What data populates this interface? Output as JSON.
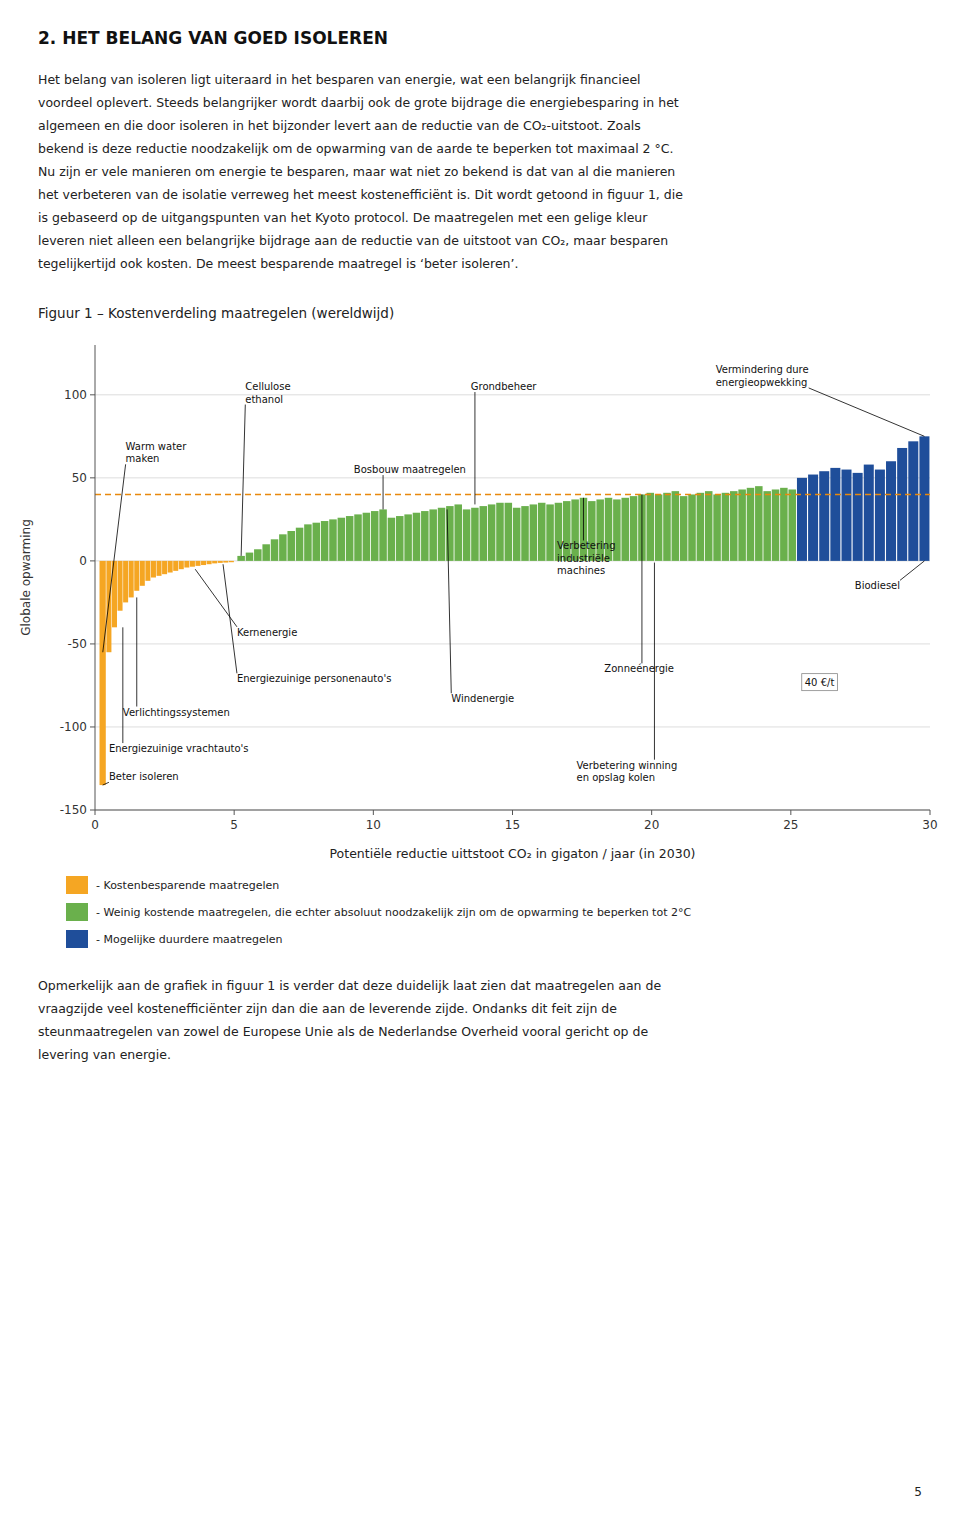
{
  "heading": "2.  HET BELANG VAN GOED ISOLEREN",
  "paragraph1": [
    "Het belang van isoleren ligt uiteraard in het besparen van energie, wat een belangrijk financieel",
    "voordeel oplevert. Steeds belangrijker wordt daarbij ook de grote bijdrage die energiebesparing in het",
    "algemeen en die door isoleren in het bijzonder levert aan de reductie van de CO₂-uitstoot. Zoals",
    "bekend is deze reductie noodzakelijk om de opwarming van de aarde te beperken tot maximaal 2 °C.",
    "Nu zijn er vele manieren om energie te besparen, maar wat niet zo bekend is dat van al die manieren",
    "het verbeteren van de isolatie verreweg het meest kostenefficiënt is. Dit wordt getoond in figuur 1, die",
    "is gebaseerd op de uitgangspunten van het Kyoto protocol. De maatregelen met een gelige kleur",
    "leveren niet alleen een belangrijke bijdrage aan de reductie van de uitstoot van CO₂, maar besparen",
    "tegelijkertijd ook kosten. De meest besparende maatregel is ‘beter isoleren’."
  ],
  "paragraph2": [
    "Opmerkelijk aan de grafiek in figuur 1 is verder dat deze duidelijk laat zien dat maatregelen aan de",
    "vraagzijde veel kostenefficiënter zijn dan die aan de leverende zijde. Ondanks dit feit zijn de",
    "steunmaatregelen van zowel de Europese Unie als de Nederlandse Overheid vooral gericht op de",
    "levering van energie."
  ],
  "page_number": "5",
  "chart_data": {
    "type": "bar",
    "title": "Figuur 1 – Kostenverdeling maatregelen (wereldwijd)",
    "xlabel": "Potentiële reductie uittstoot CO₂ in gigaton / jaar (in 2030)",
    "ylabel": "Globale opwarming",
    "xlim": [
      0,
      30
    ],
    "ylim": [
      -150,
      130
    ],
    "xticks": [
      0,
      5,
      10,
      15,
      20,
      25,
      30
    ],
    "yticks": [
      -150,
      -100,
      -50,
      0,
      50,
      100
    ],
    "grid": true,
    "series": [
      {
        "name": "- Kostenbesparende maatregelen",
        "color": "#F5A623",
        "x": [
          0.15,
          0.4,
          0.6,
          0.8,
          1.0,
          1.2,
          1.4,
          1.6,
          1.8,
          2.0,
          2.2,
          2.4,
          2.6,
          2.8,
          3.0,
          3.2,
          3.4,
          3.6,
          3.8,
          4.0,
          4.2,
          4.4,
          4.6,
          4.8
        ],
        "widths": [
          0.25,
          0.2,
          0.2,
          0.2,
          0.2,
          0.2,
          0.2,
          0.2,
          0.2,
          0.2,
          0.2,
          0.2,
          0.2,
          0.2,
          0.2,
          0.2,
          0.2,
          0.2,
          0.2,
          0.2,
          0.2,
          0.2,
          0.2,
          0.2
        ],
        "values": [
          -135,
          -55,
          -40,
          -30,
          -25,
          -22,
          -18,
          -15,
          -12,
          -10,
          -9,
          -8,
          -7,
          -6,
          -5,
          -4,
          -3.5,
          -3,
          -2.5,
          -2,
          -1.5,
          -1.2,
          -1,
          -0.8
        ]
      },
      {
        "name": "- Weinig kostende maatregelen, die echter absoluut noodzakelijk zijn om de opwarming te beperken tot 2°C",
        "color": "#6AB04C",
        "x": [
          5.1,
          5.4,
          5.7,
          6.0,
          6.3,
          6.6,
          6.9,
          7.2,
          7.5,
          7.8,
          8.1,
          8.4,
          8.7,
          9.0,
          9.3,
          9.6,
          9.9,
          10.2,
          10.5,
          10.8,
          11.1,
          11.4,
          11.7,
          12.0,
          12.3,
          12.6,
          12.9,
          13.2,
          13.5,
          13.8,
          14.1,
          14.4,
          14.7,
          15.0,
          15.3,
          15.6,
          15.9,
          16.2,
          16.5,
          16.8,
          17.1,
          17.4,
          17.7,
          18.0,
          18.3,
          18.6,
          18.9,
          19.2,
          19.5,
          19.8,
          20.1,
          20.4,
          20.7,
          21.0,
          21.3,
          21.6,
          21.9,
          22.2,
          22.5,
          22.8,
          23.1,
          23.4,
          23.7,
          24.0,
          24.3,
          24.6,
          24.9
        ],
        "widths": [
          0.3,
          0.3,
          0.3,
          0.3,
          0.3,
          0.3,
          0.3,
          0.3,
          0.3,
          0.3,
          0.3,
          0.3,
          0.3,
          0.3,
          0.3,
          0.3,
          0.3,
          0.3,
          0.3,
          0.3,
          0.3,
          0.3,
          0.3,
          0.3,
          0.3,
          0.3,
          0.3,
          0.3,
          0.3,
          0.3,
          0.3,
          0.3,
          0.3,
          0.3,
          0.3,
          0.3,
          0.3,
          0.3,
          0.3,
          0.3,
          0.3,
          0.3,
          0.3,
          0.3,
          0.3,
          0.3,
          0.3,
          0.3,
          0.3,
          0.3,
          0.3,
          0.3,
          0.3,
          0.3,
          0.3,
          0.3,
          0.3,
          0.3,
          0.3,
          0.3,
          0.3,
          0.3,
          0.3,
          0.3,
          0.3,
          0.3,
          0.3
        ],
        "values": [
          3,
          5,
          7,
          10,
          13,
          16,
          18,
          20,
          22,
          23,
          24,
          25,
          26,
          27,
          28,
          29,
          30,
          31,
          26,
          27,
          28,
          29,
          30,
          31,
          32,
          33,
          34,
          31,
          32,
          33,
          34,
          35,
          35,
          32,
          33,
          34,
          35,
          34,
          35,
          36,
          37,
          38,
          36,
          37,
          38,
          37,
          38,
          39,
          40,
          41,
          40,
          41,
          42,
          39,
          40,
          41,
          42,
          40,
          41,
          42,
          43,
          44,
          45,
          42,
          43,
          44,
          43
        ]
      },
      {
        "name": "- Mogelijke duurdere maatregelen",
        "color": "#1F4E9A",
        "x": [
          25.2,
          25.6,
          26.0,
          26.4,
          26.8,
          27.2,
          27.6,
          28.0,
          28.4,
          28.8,
          29.2,
          29.6
        ],
        "widths": [
          0.4,
          0.4,
          0.4,
          0.4,
          0.4,
          0.4,
          0.4,
          0.4,
          0.4,
          0.4,
          0.4,
          0.4
        ],
        "values": [
          50,
          52,
          54,
          56,
          55,
          53,
          58,
          55,
          60,
          68,
          72,
          75
        ]
      }
    ],
    "reference_line": {
      "y": 40,
      "color": "#E8890C"
    },
    "annotations": [
      {
        "text": "Warm water\nmaken",
        "x": 0.28,
        "y": -55,
        "text_x": 1.1,
        "text_y": 72
      },
      {
        "text": "Cellulose\nethanol",
        "x": 5.25,
        "y": 3,
        "text_x": 5.4,
        "text_y": 108
      },
      {
        "text": "Bosbouw maatregelen",
        "x": 10.35,
        "y": 31,
        "text_x": 9.3,
        "text_y": 58
      },
      {
        "text": "Grondbeheer",
        "x": 13.65,
        "y": 34,
        "text_x": 13.5,
        "text_y": 108
      },
      {
        "text": "Vermindering dure\nenergieopwekking",
        "x": 29.8,
        "y": 75,
        "text_x": 22.3,
        "text_y": 118
      },
      {
        "text": "Kernenergie",
        "x": 3.6,
        "y": -5,
        "text_x": 5.1,
        "text_y": -40
      },
      {
        "text": "Energiezuinige personenauto's",
        "x": 4.6,
        "y": -2,
        "text_x": 5.1,
        "text_y": -68
      },
      {
        "text": "Verlichtingssystemen",
        "x": 1.5,
        "y": -22,
        "text_x": 1.0,
        "text_y": -88
      },
      {
        "text": "Windenergie",
        "x": 12.65,
        "y": 31,
        "text_x": 12.8,
        "text_y": -80
      },
      {
        "text": "Zonneénergie",
        "x": 19.65,
        "y": 40,
        "text_x": 18.3,
        "text_y": -62
      },
      {
        "text": "Verbetering\nindustriële\nmachines",
        "x": 17.55,
        "y": 38,
        "text_x": 16.6,
        "text_y": 12
      },
      {
        "text": "Verbetering winning\nen opslag kolen",
        "x": 20.1,
        "y": -1,
        "text_x": 17.3,
        "text_y": -120
      },
      {
        "text": "Biodiesel",
        "x": 29.8,
        "y": 0,
        "text_x": 27.3,
        "text_y": -12
      },
      {
        "text": "Energiezuinige vrachtauto's",
        "x": 1.0,
        "y": -40,
        "text_x": 0.5,
        "text_y": -110
      },
      {
        "text": "Beter isoleren",
        "x": 0.275,
        "y": -135,
        "text_x": 0.5,
        "text_y": -127
      },
      {
        "text": "40 €/t",
        "x": 25.5,
        "y": -70
      }
    ]
  }
}
